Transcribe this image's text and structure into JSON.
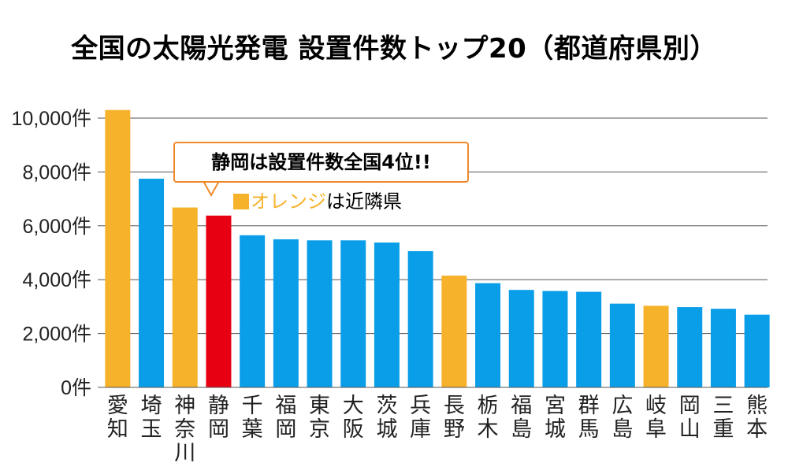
{
  "title": "全国の太陽光発電 設置件数トップ20（都道府県別）",
  "callout": "静岡は設置件数全国4位!!",
  "legend": {
    "highlight": "オレンジ",
    "rest": "は近隣県"
  },
  "colors": {
    "normal": "#0a9ee8",
    "neighbor": "#f5b22a",
    "shizuoka": "#e60012",
    "callout_border": "#f0892a",
    "grid": "#555555"
  },
  "chart_data": {
    "type": "bar",
    "title": "全国の太陽光発電 設置件数トップ20（都道府県別）",
    "xlabel": "",
    "ylabel": "",
    "ylim": [
      0,
      10000
    ],
    "yticks": [
      "0件",
      "2,000件",
      "4,000件",
      "6,000件",
      "8,000件",
      "10,000件"
    ],
    "ytick_values": [
      0,
      2000,
      4000,
      6000,
      8000,
      10000
    ],
    "grid": true,
    "categories": [
      "愛知",
      "埼玉",
      "神奈川",
      "静岡",
      "千葉",
      "福岡",
      "東京",
      "大阪",
      "茨城",
      "兵庫",
      "長野",
      "栃木",
      "福島",
      "宮城",
      "群馬",
      "広島",
      "岐阜",
      "岡山",
      "三重",
      "熊本"
    ],
    "values": [
      10300,
      7750,
      6680,
      6380,
      5650,
      5500,
      5460,
      5460,
      5380,
      5060,
      4150,
      3870,
      3620,
      3580,
      3550,
      3110,
      3030,
      2980,
      2920,
      2700
    ],
    "bar_groups": [
      "neighbor",
      "normal",
      "neighbor",
      "shizuoka",
      "normal",
      "normal",
      "normal",
      "normal",
      "normal",
      "normal",
      "neighbor",
      "normal",
      "normal",
      "normal",
      "normal",
      "normal",
      "neighbor",
      "normal",
      "normal",
      "normal"
    ]
  }
}
